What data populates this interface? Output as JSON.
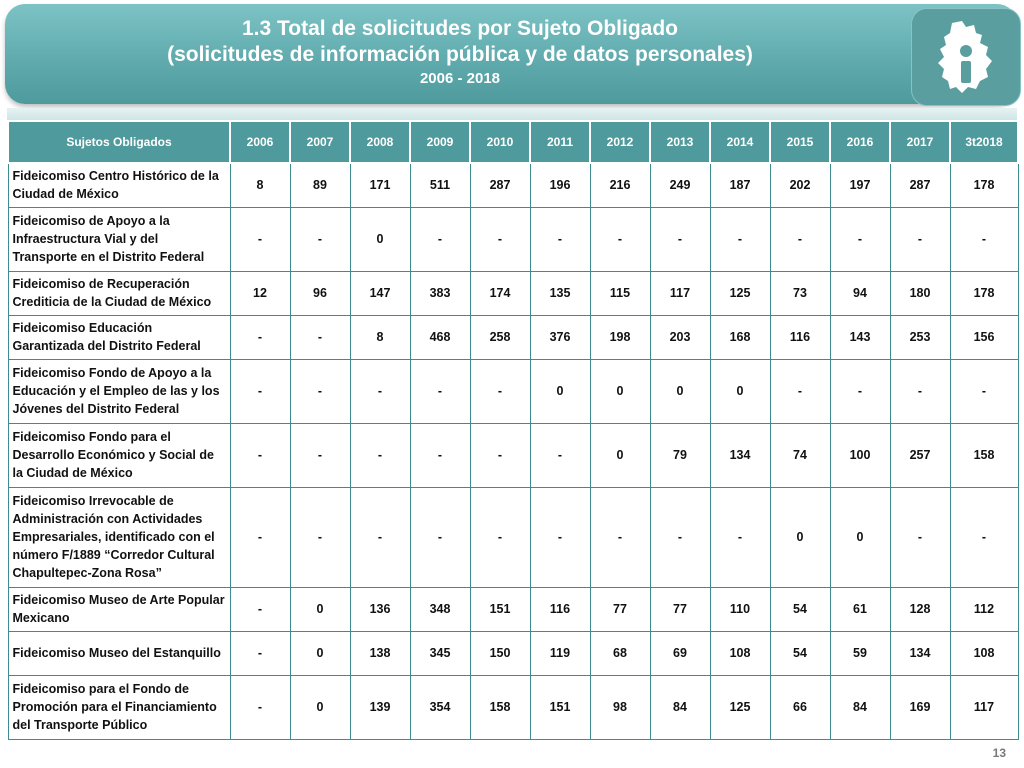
{
  "header": {
    "title_line1": "1.3 Total de solicitudes por Sujeto Obligado",
    "title_line2": "(solicitudes de información pública y de datos personales)",
    "years": "2006 - 2018",
    "logo_icon": "cdmx-info-logo-icon"
  },
  "table": {
    "columns": [
      "Sujetos Obligados",
      "2006",
      "2007",
      "2008",
      "2009",
      "2010",
      "2011",
      "2012",
      "2013",
      "2014",
      "2015",
      "2016",
      "2017",
      "3t2018"
    ],
    "rows": [
      {
        "name": "Fideicomiso Centro Histórico de la Ciudad de México",
        "values": [
          "8",
          "89",
          "171",
          "511",
          "287",
          "196",
          "216",
          "249",
          "187",
          "202",
          "197",
          "287",
          "178"
        ]
      },
      {
        "name": "Fideicomiso de Apoyo a la Infraestructura Vial y del Transporte en el Distrito Federal",
        "values": [
          "-",
          "-",
          "0",
          "-",
          "-",
          "-",
          "-",
          "-",
          "-",
          "-",
          "-",
          "-",
          "-"
        ]
      },
      {
        "name": "Fideicomiso de Recuperación Crediticia de la Ciudad de México",
        "values": [
          "12",
          "96",
          "147",
          "383",
          "174",
          "135",
          "115",
          "117",
          "125",
          "73",
          "94",
          "180",
          "178"
        ]
      },
      {
        "name": "Fideicomiso Educación Garantizada del Distrito Federal",
        "values": [
          "-",
          "-",
          "8",
          "468",
          "258",
          "376",
          "198",
          "203",
          "168",
          "116",
          "143",
          "253",
          "156"
        ]
      },
      {
        "name": "Fideicomiso Fondo de Apoyo a la Educación y el Empleo de las y los Jóvenes del Distrito Federal",
        "values": [
          "-",
          "-",
          "-",
          "-",
          "-",
          "0",
          "0",
          "0",
          "0",
          "-",
          "-",
          "-",
          "-"
        ]
      },
      {
        "name": "Fideicomiso Fondo para el Desarrollo Económico y Social de la Ciudad de México",
        "values": [
          "-",
          "-",
          "-",
          "-",
          "-",
          "-",
          "0",
          "79",
          "134",
          "74",
          "100",
          "257",
          "158"
        ]
      },
      {
        "name": "Fideicomiso Irrevocable de Administración con Actividades Empresariales, identificado con el número F/1889 “Corredor Cultural Chapultepec-Zona Rosa”",
        "values": [
          "-",
          "-",
          "-",
          "-",
          "-",
          "-",
          "-",
          "-",
          "-",
          "0",
          "0",
          "-",
          "-"
        ]
      },
      {
        "name": "Fideicomiso Museo de Arte Popular Mexicano",
        "values": [
          "-",
          "0",
          "136",
          "348",
          "151",
          "116",
          "77",
          "77",
          "110",
          "54",
          "61",
          "128",
          "112"
        ]
      },
      {
        "name": "Fideicomiso Museo del Estanquillo",
        "values": [
          "-",
          "0",
          "138",
          "345",
          "150",
          "119",
          "68",
          "69",
          "108",
          "54",
          "59",
          "134",
          "108"
        ]
      },
      {
        "name": "Fideicomiso para el Fondo de Promoción para el Financiamiento del Transporte Público",
        "values": [
          "-",
          "0",
          "139",
          "354",
          "158",
          "151",
          "98",
          "84",
          "125",
          "66",
          "84",
          "169",
          "117"
        ]
      }
    ]
  },
  "footer": {
    "page_number": "13"
  }
}
